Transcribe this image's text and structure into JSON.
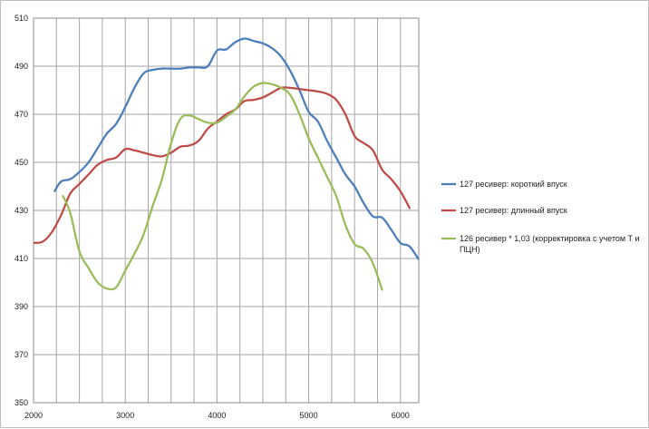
{
  "chart_data": {
    "type": "line",
    "title": "",
    "xlabel": "",
    "ylabel": "",
    "xlim": [
      2000,
      6200
    ],
    "ylim": [
      350,
      510
    ],
    "xticks": [
      2000,
      3000,
      4000,
      5000,
      6000
    ],
    "yticks": [
      350,
      370,
      390,
      410,
      430,
      450,
      470,
      490,
      510
    ],
    "grid": true,
    "legend_position": "right",
    "series": [
      {
        "name": "127 ресивер: короткий впуск",
        "color": "#4a7ebb",
        "x": [
          2230,
          2300,
          2400,
          2500,
          2600,
          2700,
          2800,
          2900,
          3000,
          3100,
          3200,
          3300,
          3400,
          3500,
          3600,
          3700,
          3800,
          3900,
          4000,
          4100,
          4200,
          4300,
          4400,
          4500,
          4600,
          4700,
          4800,
          4900,
          5000,
          5100,
          5200,
          5300,
          5400,
          5500,
          5600,
          5700,
          5800,
          5900,
          6000,
          6100,
          6200
        ],
        "values": [
          438,
          442,
          443,
          446,
          450,
          456,
          462,
          466,
          473,
          481,
          487,
          488.5,
          489,
          489,
          489,
          489.5,
          489.5,
          490,
          496.5,
          497,
          500,
          501.5,
          500.5,
          499.5,
          497.5,
          494,
          488,
          480,
          471,
          467,
          459,
          452,
          445,
          440,
          433,
          427.5,
          427,
          422,
          416.5,
          415,
          409.5
        ]
      },
      {
        "name": "127 ресивер: длинный впуск",
        "color": "#be4b48",
        "x": [
          2000,
          2100,
          2200,
          2300,
          2400,
          2500,
          2600,
          2700,
          2800,
          2900,
          3000,
          3100,
          3200,
          3300,
          3400,
          3500,
          3600,
          3700,
          3800,
          3900,
          4000,
          4100,
          4200,
          4300,
          4400,
          4500,
          4600,
          4700,
          4800,
          4900,
          5000,
          5100,
          5200,
          5300,
          5400,
          5500,
          5600,
          5700,
          5800,
          5900,
          6000,
          6100
        ],
        "values": [
          416.5,
          417,
          421,
          428,
          437,
          441,
          445,
          449,
          451,
          452,
          455.5,
          455,
          454,
          453,
          452.5,
          454,
          456.5,
          457,
          459,
          464,
          467,
          470,
          472,
          475.5,
          476,
          477,
          479,
          481,
          481,
          480.5,
          480,
          479.5,
          478.5,
          476,
          470,
          461,
          458,
          455,
          447,
          443,
          438,
          431
        ]
      },
      {
        "name": "126 ресивер * 1,03 (корректировка с учетом Т и ПЦН)",
        "color": "#9bbb59",
        "x": [
          2320,
          2400,
          2500,
          2600,
          2700,
          2800,
          2900,
          3000,
          3100,
          3200,
          3300,
          3400,
          3500,
          3600,
          3700,
          3800,
          3900,
          4000,
          4100,
          4200,
          4300,
          4400,
          4500,
          4600,
          4700,
          4800,
          4900,
          5000,
          5100,
          5200,
          5300,
          5400,
          5500,
          5600,
          5700,
          5800
        ],
        "values": [
          436,
          429,
          413,
          406,
          400,
          397.5,
          398,
          405,
          412,
          420,
          432,
          443,
          458,
          468,
          469.5,
          468,
          466.5,
          466.5,
          469,
          472,
          477.5,
          481.5,
          483,
          482.5,
          481,
          478,
          470,
          460,
          452,
          444,
          436,
          424,
          416,
          414,
          408,
          397
        ]
      }
    ]
  }
}
